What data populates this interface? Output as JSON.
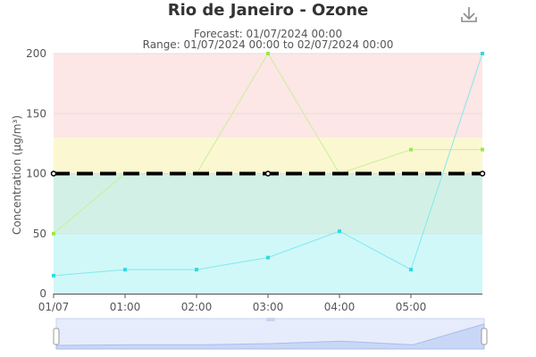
{
  "header": {
    "title": "Rio de Janeiro - Ozone",
    "forecast_text": "Forecast: 01/07/2024 00:00",
    "range_text": "Range: 01/07/2024 00:00 to 02/07/2024 00:00"
  },
  "toolbar": {
    "download_icon": "download-icon"
  },
  "chart_data": {
    "type": "line",
    "title": "Rio de Janeiro - Ozone",
    "xlabel": "",
    "ylabel": "Concentration (µg/m³)",
    "ylim": [
      0,
      200
    ],
    "xlim": [
      0,
      6
    ],
    "yticks": [
      0,
      50,
      100,
      150,
      200
    ],
    "x_tick_values": [
      0,
      1,
      2,
      3,
      4,
      5
    ],
    "x_tick_labels": [
      "01/07",
      "01:00",
      "02:00",
      "03:00",
      "04:00",
      "05:00"
    ],
    "grid": true,
    "bands": [
      {
        "from": 0,
        "to": 50,
        "color": "#d0f8f8"
      },
      {
        "from": 50,
        "to": 100,
        "color": "#d3f0e6"
      },
      {
        "from": 100,
        "to": 130,
        "color": "#fbf8d1"
      },
      {
        "from": 130,
        "to": 200,
        "color": "#fde6e6"
      }
    ],
    "series": [
      {
        "color": "#c8f096",
        "marker_color": "#9be84a",
        "x": [
          0,
          1,
          2,
          3,
          4,
          5,
          6
        ],
        "values": [
          50,
          100,
          100,
          200,
          100,
          120,
          120
        ]
      },
      {
        "color": "#82e8ee",
        "marker_color": "#30dadf",
        "x": [
          0,
          1,
          2,
          3,
          4,
          5,
          6
        ],
        "values": [
          15,
          20,
          20,
          30,
          52,
          20,
          200
        ]
      }
    ],
    "threshold": {
      "value": 100,
      "color": "#000000",
      "marker_x": [
        0,
        3,
        6
      ]
    },
    "navigator": {
      "values": [
        15,
        20,
        20,
        30,
        52,
        20,
        200
      ]
    }
  }
}
